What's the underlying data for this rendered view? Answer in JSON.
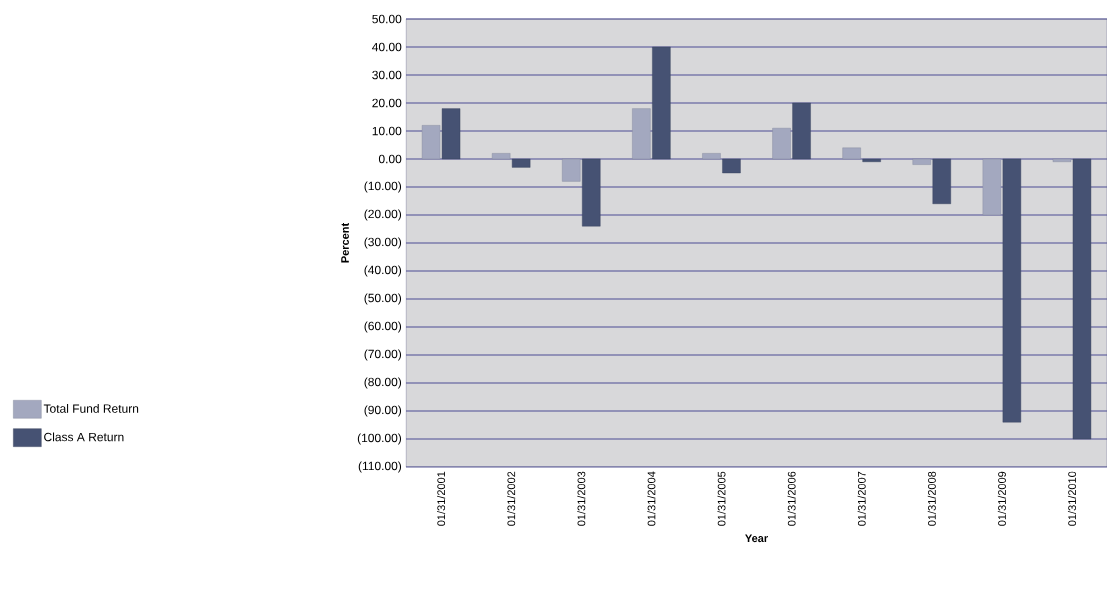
{
  "chart_data": {
    "type": "bar",
    "xlabel": "Year",
    "ylabel": "Percent",
    "categories": [
      "01/31/2001",
      "01/31/2002",
      "01/31/2003",
      "01/31/2004",
      "01/31/2005",
      "01/31/2006",
      "01/31/2007",
      "01/31/2008",
      "01/31/2009",
      "01/31/2010"
    ],
    "series": [
      {
        "name": "Total Fund Return",
        "color": "#a3a8bf",
        "values": [
          12,
          2,
          -8,
          18,
          2,
          11,
          4,
          -2,
          -20,
          -1
        ]
      },
      {
        "name": "Class A Return",
        "color": "#465273",
        "values": [
          18,
          -3,
          -24,
          40,
          -5,
          20,
          -1,
          -16,
          -94,
          -100
        ]
      }
    ],
    "ylim": [
      -110,
      50
    ],
    "yticks": [
      {
        "value": 50,
        "label": "50.00"
      },
      {
        "value": 40,
        "label": "40.00"
      },
      {
        "value": 30,
        "label": "30.00"
      },
      {
        "value": 20,
        "label": "20.00"
      },
      {
        "value": 10,
        "label": "10.00"
      },
      {
        "value": 0,
        "label": "0.00"
      },
      {
        "value": -10,
        "label": "(10.00)"
      },
      {
        "value": -20,
        "label": "(20.00)"
      },
      {
        "value": -30,
        "label": "(30.00)"
      },
      {
        "value": -40,
        "label": "(40.00)"
      },
      {
        "value": -50,
        "label": "(50.00)"
      },
      {
        "value": -60,
        "label": "(60.00)"
      },
      {
        "value": -70,
        "label": "(70.00)"
      },
      {
        "value": -80,
        "label": "(80.00)"
      },
      {
        "value": -90,
        "label": "(90.00)"
      },
      {
        "value": -100,
        "label": "(100.00)"
      },
      {
        "value": -110,
        "label": "(110.00)"
      }
    ],
    "grid": "y",
    "legend": "left"
  }
}
